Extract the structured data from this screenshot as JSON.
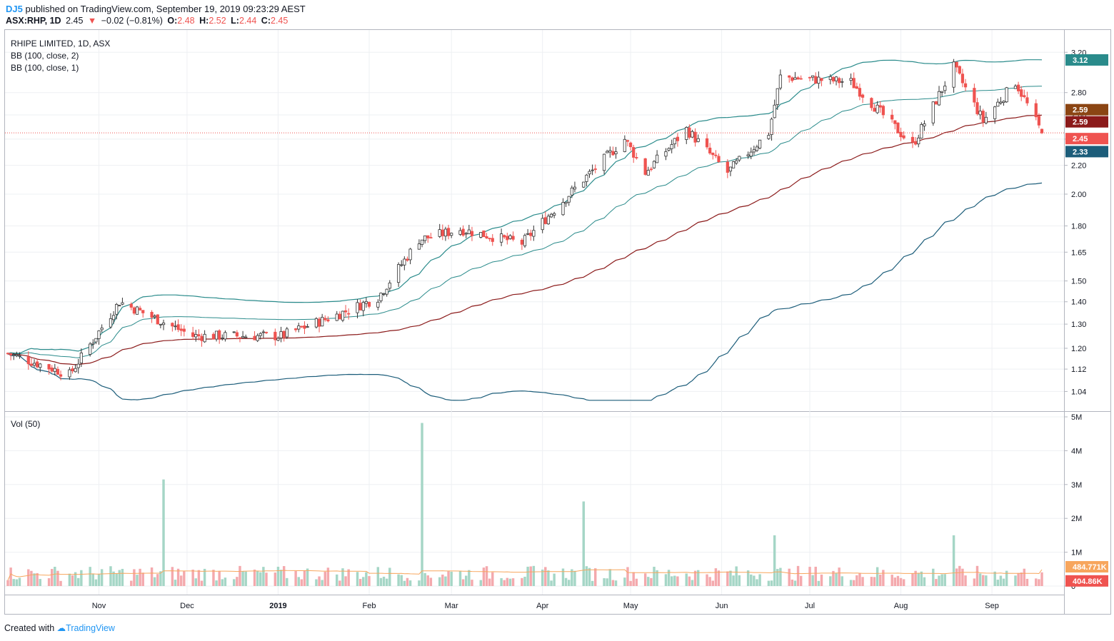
{
  "header": {
    "author": "DJ5",
    "published_text": "published on TradingView.com, September 19, 2019 09:23:29 AEST",
    "symbol": "ASX:RHP, 1D",
    "last": "2.45",
    "change": "−0.02 (−0.81%)",
    "open_label": "O:",
    "open": "2.48",
    "high_label": "H:",
    "high": "2.52",
    "low_label": "L:",
    "low": "2.44",
    "close_label": "C:",
    "close": "2.45"
  },
  "legend": {
    "title": "RHIPE LIMITED, 1D, ASX",
    "ind1": "BB (100, close, 2)",
    "ind2": "BB (100, close, 1)",
    "volume": "Vol (50)"
  },
  "price_labels": {
    "bb_upper": "3.12",
    "bb_mid_a": "2.59",
    "bb_mid_b": "2.59",
    "last": "2.45",
    "bb_lower": "2.33",
    "vol_ma": "484.771K",
    "vol_last": "404.86K"
  },
  "footer": {
    "created": "Created with",
    "brand": "TradingView"
  },
  "colors": {
    "up": "#26a69a",
    "down": "#ef5350",
    "vol_up": "#a5d6c6",
    "vol_down": "#f4a9ad",
    "bb_upper": "#2a8b8b",
    "bb_lower": "#1c5d7a",
    "bb_mid": "#8b1a1a",
    "vol_ma": "#f7a65d",
    "last_price": "#ef5350"
  },
  "chart_data": {
    "type": "candlestick",
    "scale": "log",
    "ylim": [
      1.0,
      3.24
    ],
    "y_ticks": [
      "3.20",
      "2.80",
      "2.60",
      "2.40",
      "2.20",
      "2.00",
      "1.80",
      "1.65",
      "1.50",
      "1.40",
      "1.30",
      "1.20",
      "1.12",
      "1.04"
    ],
    "x_ticks": [
      "Nov",
      "Dec",
      "2019",
      "Feb",
      "Mar",
      "Apr",
      "May",
      "Jun",
      "Jul",
      "Aug",
      "Sep"
    ],
    "vol_ticks": [
      "5M",
      "4M",
      "3M",
      "2M",
      "1M",
      "0"
    ],
    "vol_ylim": [
      0,
      5000000
    ],
    "key_closes": [
      {
        "date": "2018-10-01",
        "close": 1.18
      },
      {
        "date": "2018-10-22",
        "close": 1.1
      },
      {
        "date": "2018-11-08",
        "close": 1.4
      },
      {
        "date": "2018-12-03",
        "close": 1.25
      },
      {
        "date": "2019-01-02",
        "close": 1.25
      },
      {
        "date": "2019-01-21",
        "close": 1.34
      },
      {
        "date": "2019-02-04",
        "close": 1.42
      },
      {
        "date": "2019-02-18",
        "close": 1.72
      },
      {
        "date": "2019-03-04",
        "close": 1.78
      },
      {
        "date": "2019-03-25",
        "close": 1.7
      },
      {
        "date": "2019-04-15",
        "close": 2.1
      },
      {
        "date": "2019-04-29",
        "close": 2.4
      },
      {
        "date": "2019-05-06",
        "close": 2.15
      },
      {
        "date": "2019-05-20",
        "close": 2.48
      },
      {
        "date": "2019-06-03",
        "close": 2.15
      },
      {
        "date": "2019-06-17",
        "close": 2.45
      },
      {
        "date": "2019-06-21",
        "close": 2.95
      },
      {
        "date": "2019-07-15",
        "close": 2.9
      },
      {
        "date": "2019-08-05",
        "close": 2.35
      },
      {
        "date": "2019-08-19",
        "close": 3.05
      },
      {
        "date": "2019-08-29",
        "close": 2.55
      },
      {
        "date": "2019-09-09",
        "close": 2.9
      },
      {
        "date": "2019-09-18",
        "close": 2.45
      }
    ],
    "key_volumes": [
      {
        "date": "2018-11-23",
        "volume": 3150000
      },
      {
        "date": "2019-02-19",
        "volume": 4820000
      },
      {
        "date": "2019-04-15",
        "volume": 2500000
      },
      {
        "date": "2019-06-19",
        "volume": 1500000
      },
      {
        "date": "2019-08-19",
        "volume": 1500000
      }
    ],
    "bb_upper_last": 3.12,
    "bb_mid_last": 2.59,
    "bb_lower_last": 2.33,
    "vol_ma_last": 484771,
    "vol_last": 404860,
    "grid": true,
    "legend_position": "top-left"
  }
}
